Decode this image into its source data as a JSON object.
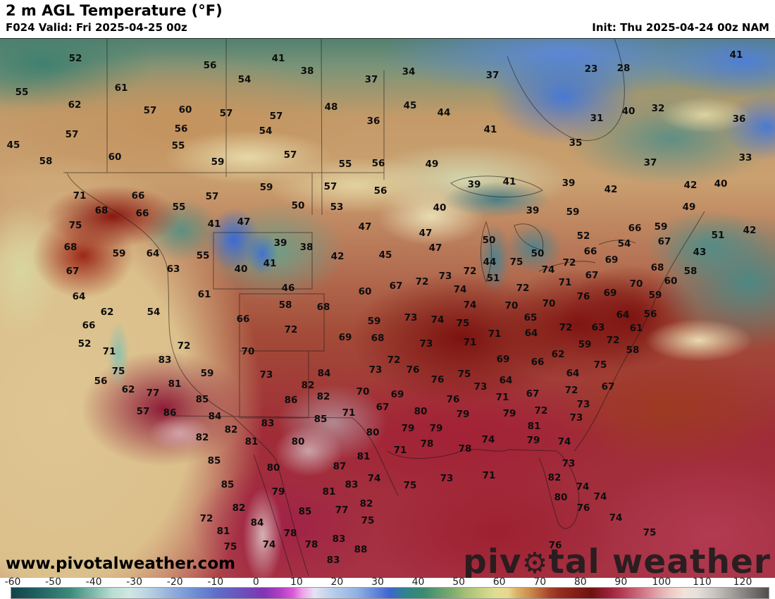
{
  "header": {
    "title": "2 m AGL Temperature (°F)",
    "valid": "F024 Valid: Fri 2025-04-25 00z",
    "init": "Init: Thu 2025-04-24 00z NAM"
  },
  "watermark": "www.pivotalweather.com",
  "logo": {
    "pre": "piv",
    "gear": "⚙",
    "post": "tal weather"
  },
  "colors": {
    "cold_teal": "#2d7f72",
    "arctic_blue": "#4879d2",
    "prairie_tan": "#c4935e",
    "band_cream": "#e6d8a8",
    "hot_dark_red": "#7c1210",
    "south_crimson": "#a32136",
    "sw_magenta": "#8e1b38",
    "pacific_sand": "#dec592",
    "atlantic_teal": "#4e8884"
  },
  "colorbar": {
    "min": -60,
    "max": 120,
    "ticks": [
      -60,
      -50,
      -40,
      -30,
      -20,
      -10,
      0,
      10,
      20,
      30,
      40,
      50,
      60,
      70,
      80,
      90,
      100,
      110,
      120
    ],
    "stops": [
      {
        "t": -60,
        "c": "#11434c"
      },
      {
        "t": -52,
        "c": "#276a67"
      },
      {
        "t": -46,
        "c": "#3d8a7d"
      },
      {
        "t": -41,
        "c": "#79b5a7"
      },
      {
        "t": -36,
        "c": "#b9ded2"
      },
      {
        "t": -32,
        "c": "#cfe7e2"
      },
      {
        "t": -28,
        "c": "#bcd6e4"
      },
      {
        "t": -22,
        "c": "#93afdc"
      },
      {
        "t": -16,
        "c": "#6c8cd2"
      },
      {
        "t": -11,
        "c": "#5f6dc8"
      },
      {
        "t": -5,
        "c": "#6c4fba"
      },
      {
        "t": 0,
        "c": "#8333b4"
      },
      {
        "t": 4,
        "c": "#b23fc4"
      },
      {
        "t": 7,
        "c": "#da5ad8"
      },
      {
        "t": 9,
        "c": "#ef9ce6"
      },
      {
        "t": 12,
        "c": "#e6e2f2"
      },
      {
        "t": 16,
        "c": "#bccfec"
      },
      {
        "t": 22,
        "c": "#93b2e2"
      },
      {
        "t": 27,
        "c": "#5c82d6"
      },
      {
        "t": 30,
        "c": "#3e66ce"
      },
      {
        "t": 34,
        "c": "#2f8588"
      },
      {
        "t": 38,
        "c": "#3b8b70"
      },
      {
        "t": 45,
        "c": "#7fae6e"
      },
      {
        "t": 48,
        "c": "#a5c077"
      },
      {
        "t": 52,
        "c": "#c9d285"
      },
      {
        "t": 55,
        "c": "#e0dd92"
      },
      {
        "t": 58,
        "c": "#e7d88e"
      },
      {
        "t": 60,
        "c": "#dcb46c"
      },
      {
        "t": 63,
        "c": "#cd8f4e"
      },
      {
        "t": 66,
        "c": "#b96038"
      },
      {
        "t": 68,
        "c": "#a6422a"
      },
      {
        "t": 70,
        "c": "#97301f"
      },
      {
        "t": 74,
        "c": "#851e16"
      },
      {
        "t": 78,
        "c": "#6f1212"
      },
      {
        "t": 82,
        "c": "#9c2138"
      },
      {
        "t": 85,
        "c": "#b23a52"
      },
      {
        "t": 88,
        "c": "#c65d72"
      },
      {
        "t": 91,
        "c": "#d58290"
      },
      {
        "t": 94,
        "c": "#e4aaae"
      },
      {
        "t": 97,
        "c": "#efccc6"
      },
      {
        "t": 100,
        "c": "#f2e3da"
      },
      {
        "t": 103,
        "c": "#e6e0da"
      },
      {
        "t": 107,
        "c": "#c9c5c1"
      },
      {
        "t": 111,
        "c": "#a5a19e"
      },
      {
        "t": 115,
        "c": "#7f7c79"
      },
      {
        "t": 120,
        "c": "#504d4b"
      }
    ]
  },
  "map_labels": [
    [
      52,
      107,
      82
    ],
    [
      55,
      31,
      130
    ],
    [
      61,
      172,
      124
    ],
    [
      62,
      106,
      148
    ],
    [
      57,
      213,
      156
    ],
    [
      60,
      263,
      155
    ],
    [
      57,
      102,
      190
    ],
    [
      56,
      257,
      182
    ],
    [
      45,
      19,
      205
    ],
    [
      55,
      253,
      206
    ],
    [
      60,
      163,
      222
    ],
    [
      58,
      65,
      228
    ],
    [
      56,
      298,
      92
    ],
    [
      41,
      395,
      82
    ],
    [
      38,
      436,
      100
    ],
    [
      54,
      347,
      112
    ],
    [
      37,
      527,
      112
    ],
    [
      57,
      321,
      160
    ],
    [
      57,
      392,
      164
    ],
    [
      48,
      470,
      151
    ],
    [
      36,
      530,
      171
    ],
    [
      54,
      377,
      185
    ],
    [
      57,
      412,
      219
    ],
    [
      59,
      309,
      229
    ],
    [
      55,
      490,
      232
    ],
    [
      56,
      537,
      231
    ],
    [
      34,
      580,
      101
    ],
    [
      37,
      699,
      106
    ],
    [
      45,
      582,
      149
    ],
    [
      44,
      630,
      159
    ],
    [
      41,
      696,
      183
    ],
    [
      35,
      817,
      202
    ],
    [
      49,
      613,
      232
    ],
    [
      23,
      839,
      97
    ],
    [
      28,
      885,
      96
    ],
    [
      41,
      1045,
      77
    ],
    [
      40,
      892,
      157
    ],
    [
      32,
      934,
      153
    ],
    [
      31,
      847,
      167
    ],
    [
      36,
      1049,
      168
    ],
    [
      37,
      923,
      230
    ],
    [
      33,
      1058,
      223
    ],
    [
      71,
      113,
      277
    ],
    [
      66,
      196,
      277
    ],
    [
      55,
      254,
      293
    ],
    [
      68,
      144,
      298
    ],
    [
      66,
      202,
      302
    ],
    [
      75,
      107,
      319
    ],
    [
      68,
      100,
      350
    ],
    [
      59,
      169,
      359
    ],
    [
      64,
      217,
      359
    ],
    [
      63,
      246,
      381
    ],
    [
      67,
      103,
      384
    ],
    [
      64,
      112,
      420
    ],
    [
      59,
      378,
      265
    ],
    [
      57,
      301,
      278
    ],
    [
      57,
      469,
      264
    ],
    [
      56,
      540,
      270
    ],
    [
      50,
      423,
      291
    ],
    [
      53,
      478,
      293
    ],
    [
      41,
      304,
      317
    ],
    [
      47,
      346,
      314
    ],
    [
      47,
      518,
      321
    ],
    [
      39,
      398,
      344
    ],
    [
      38,
      435,
      350
    ],
    [
      55,
      288,
      362
    ],
    [
      42,
      479,
      363
    ],
    [
      45,
      547,
      361
    ],
    [
      40,
      342,
      381
    ],
    [
      41,
      383,
      373
    ],
    [
      46,
      409,
      408
    ],
    [
      61,
      290,
      417
    ],
    [
      60,
      518,
      413
    ],
    [
      58,
      405,
      432
    ],
    [
      68,
      459,
      435
    ],
    [
      39,
      673,
      261
    ],
    [
      41,
      723,
      257
    ],
    [
      39,
      807,
      259
    ],
    [
      40,
      624,
      294
    ],
    [
      39,
      756,
      298
    ],
    [
      59,
      813,
      300
    ],
    [
      47,
      604,
      330
    ],
    [
      47,
      618,
      351
    ],
    [
      50,
      694,
      340
    ],
    [
      50,
      763,
      359
    ],
    [
      44,
      695,
      371
    ],
    [
      75,
      733,
      371
    ],
    [
      72,
      808,
      372
    ],
    [
      72,
      667,
      384
    ],
    [
      74,
      778,
      382
    ],
    [
      73,
      632,
      391
    ],
    [
      51,
      700,
      394
    ],
    [
      71,
      802,
      400
    ],
    [
      72,
      599,
      399
    ],
    [
      67,
      562,
      405
    ],
    [
      74,
      653,
      410
    ],
    [
      72,
      742,
      408
    ],
    [
      74,
      667,
      432
    ],
    [
      70,
      726,
      433
    ],
    [
      70,
      779,
      430
    ],
    [
      42,
      867,
      268
    ],
    [
      42,
      980,
      262
    ],
    [
      40,
      1023,
      260
    ],
    [
      49,
      978,
      293
    ],
    [
      66,
      901,
      323
    ],
    [
      59,
      938,
      321
    ],
    [
      51,
      1019,
      333
    ],
    [
      42,
      1064,
      326
    ],
    [
      67,
      943,
      342
    ],
    [
      52,
      828,
      334
    ],
    [
      54,
      886,
      345
    ],
    [
      66,
      838,
      356
    ],
    [
      69,
      868,
      368
    ],
    [
      43,
      993,
      357
    ],
    [
      68,
      933,
      379
    ],
    [
      58,
      980,
      384
    ],
    [
      67,
      840,
      390
    ],
    [
      60,
      952,
      398
    ],
    [
      70,
      903,
      402
    ],
    [
      69,
      866,
      415
    ],
    [
      59,
      930,
      418
    ],
    [
      76,
      828,
      420
    ],
    [
      62,
      152,
      442
    ],
    [
      54,
      218,
      442
    ],
    [
      66,
      126,
      461
    ],
    [
      52,
      120,
      487
    ],
    [
      71,
      155,
      498
    ],
    [
      72,
      261,
      490
    ],
    [
      83,
      234,
      510
    ],
    [
      75,
      168,
      526
    ],
    [
      81,
      248,
      544
    ],
    [
      56,
      143,
      540
    ],
    [
      62,
      182,
      552
    ],
    [
      77,
      217,
      557
    ],
    [
      57,
      203,
      583
    ],
    [
      86,
      241,
      585
    ],
    [
      66,
      345,
      452
    ],
    [
      72,
      413,
      467
    ],
    [
      59,
      531,
      455
    ],
    [
      69,
      490,
      478
    ],
    [
      68,
      536,
      479
    ],
    [
      70,
      352,
      498
    ],
    [
      59,
      294,
      529
    ],
    [
      73,
      378,
      531
    ],
    [
      84,
      460,
      529
    ],
    [
      73,
      533,
      524
    ],
    [
      82,
      437,
      546
    ],
    [
      82,
      459,
      562
    ],
    [
      70,
      515,
      555
    ],
    [
      85,
      287,
      566
    ],
    [
      86,
      413,
      567
    ],
    [
      67,
      543,
      577
    ],
    [
      71,
      495,
      585
    ],
    [
      84,
      305,
      590
    ],
    [
      85,
      455,
      594
    ],
    [
      82,
      328,
      609
    ],
    [
      83,
      380,
      600
    ],
    [
      82,
      287,
      620
    ],
    [
      81,
      357,
      626
    ],
    [
      80,
      423,
      626
    ],
    [
      80,
      529,
      613
    ],
    [
      73,
      583,
      450
    ],
    [
      74,
      621,
      453
    ],
    [
      75,
      657,
      458
    ],
    [
      71,
      702,
      473
    ],
    [
      65,
      753,
      450
    ],
    [
      64,
      754,
      472
    ],
    [
      72,
      803,
      464
    ],
    [
      73,
      605,
      487
    ],
    [
      71,
      667,
      485
    ],
    [
      72,
      559,
      510
    ],
    [
      69,
      714,
      509
    ],
    [
      62,
      792,
      502
    ],
    [
      66,
      763,
      513
    ],
    [
      76,
      586,
      524
    ],
    [
      75,
      659,
      530
    ],
    [
      64,
      718,
      539
    ],
    [
      64,
      813,
      529
    ],
    [
      76,
      621,
      538
    ],
    [
      73,
      682,
      548
    ],
    [
      67,
      756,
      558
    ],
    [
      72,
      811,
      553
    ],
    [
      69,
      564,
      559
    ],
    [
      76,
      643,
      566
    ],
    [
      71,
      713,
      563
    ],
    [
      80,
      597,
      583
    ],
    [
      79,
      657,
      587
    ],
    [
      79,
      723,
      586
    ],
    [
      72,
      768,
      582
    ],
    [
      81,
      758,
      604
    ],
    [
      79,
      579,
      607
    ],
    [
      79,
      619,
      607
    ],
    [
      74,
      693,
      623
    ],
    [
      79,
      757,
      624
    ],
    [
      74,
      801,
      626
    ],
    [
      78,
      606,
      629
    ],
    [
      73,
      818,
      592
    ],
    [
      64,
      884,
      446
    ],
    [
      56,
      923,
      445
    ],
    [
      63,
      849,
      464
    ],
    [
      61,
      903,
      465
    ],
    [
      72,
      870,
      482
    ],
    [
      59,
      830,
      488
    ],
    [
      58,
      898,
      496
    ],
    [
      75,
      852,
      517
    ],
    [
      67,
      863,
      548
    ],
    [
      73,
      828,
      573
    ],
    [
      85,
      304,
      653
    ],
    [
      81,
      516,
      647
    ],
    [
      80,
      388,
      663
    ],
    [
      87,
      482,
      661
    ],
    [
      74,
      531,
      678
    ],
    [
      85,
      323,
      687
    ],
    [
      83,
      499,
      687
    ],
    [
      79,
      395,
      697
    ],
    [
      81,
      467,
      697
    ],
    [
      82,
      520,
      714
    ],
    [
      82,
      339,
      720
    ],
    [
      85,
      433,
      725
    ],
    [
      77,
      485,
      723
    ],
    [
      72,
      293,
      735
    ],
    [
      75,
      522,
      738
    ],
    [
      84,
      365,
      741
    ],
    [
      81,
      317,
      753
    ],
    [
      78,
      412,
      756
    ],
    [
      83,
      481,
      764
    ],
    [
      75,
      327,
      775
    ],
    [
      74,
      382,
      772
    ],
    [
      78,
      442,
      772
    ],
    [
      88,
      512,
      779
    ],
    [
      83,
      473,
      794
    ],
    [
      71,
      568,
      638
    ],
    [
      78,
      660,
      636
    ],
    [
      73,
      634,
      678
    ],
    [
      71,
      694,
      674
    ],
    [
      75,
      582,
      688
    ],
    [
      73,
      807,
      657
    ],
    [
      82,
      787,
      677
    ],
    [
      80,
      796,
      705
    ],
    [
      76,
      788,
      773
    ],
    [
      74,
      827,
      690
    ],
    [
      74,
      852,
      704
    ],
    [
      76,
      828,
      720
    ],
    [
      74,
      874,
      734
    ],
    [
      75,
      922,
      755
    ]
  ]
}
